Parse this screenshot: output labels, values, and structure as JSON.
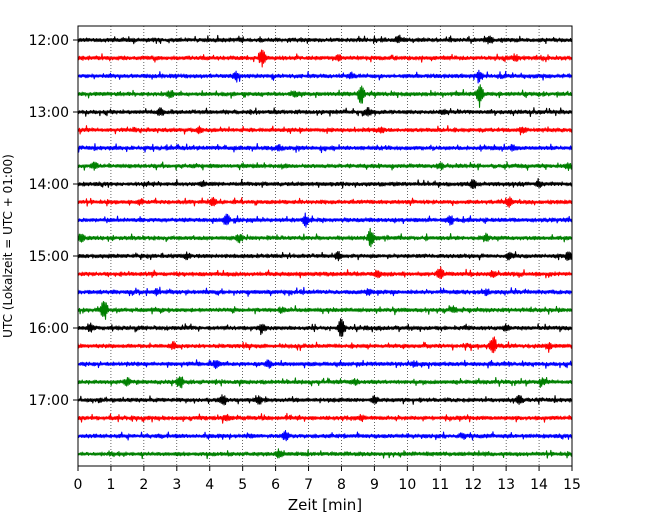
{
  "chart_data": {
    "type": "line",
    "title": "",
    "xlabel": "Zeit  [min]",
    "ylabel": "UTC (Lokalzeit = UTC + 01:00)",
    "xlim": [
      0,
      15
    ],
    "x_ticks": [
      "0",
      "1",
      "2",
      "3",
      "4",
      "5",
      "6",
      "7",
      "8",
      "9",
      "10",
      "11",
      "12",
      "13",
      "14",
      "15"
    ],
    "y_ticks": [
      "12:00",
      "13:00",
      "14:00",
      "15:00",
      "16:00",
      "17:00"
    ],
    "grid": "vertical dotted",
    "trace_colors": [
      "#000000",
      "#ff0000",
      "#0000ff",
      "#008000"
    ],
    "traces": [
      {
        "start": "12:00",
        "events": [
          [
            9.7,
            0.25
          ],
          [
            12.5,
            0.3
          ]
        ]
      },
      {
        "start": "12:15",
        "events": [
          [
            5.6,
            0.75
          ],
          [
            7.9,
            0.2
          ],
          [
            13.3,
            0.2
          ]
        ]
      },
      {
        "start": "12:30",
        "events": [
          [
            4.8,
            0.25
          ],
          [
            8.3,
            0.2
          ],
          [
            12.2,
            0.4
          ]
        ]
      },
      {
        "start": "12:45",
        "events": [
          [
            2.8,
            0.25
          ],
          [
            6.6,
            0.2
          ],
          [
            8.6,
            0.85
          ],
          [
            12.2,
            1.0
          ]
        ]
      },
      {
        "start": "13:00",
        "events": [
          [
            2.5,
            0.25
          ],
          [
            8.8,
            0.3
          ],
          [
            11.1,
            0.2
          ]
        ]
      },
      {
        "start": "13:15",
        "events": [
          [
            3.7,
            0.25
          ],
          [
            9.2,
            0.2
          ],
          [
            13.5,
            0.25
          ]
        ]
      },
      {
        "start": "13:30",
        "events": [
          [
            6.1,
            0.2
          ],
          [
            13.2,
            0.2
          ]
        ]
      },
      {
        "start": "13:45",
        "events": [
          [
            0.5,
            0.25
          ],
          [
            11.0,
            0.2
          ],
          [
            14.9,
            0.25
          ]
        ]
      },
      {
        "start": "14:00",
        "events": [
          [
            3.8,
            0.2
          ],
          [
            12.0,
            0.35
          ],
          [
            14.0,
            0.25
          ]
        ]
      },
      {
        "start": "14:15",
        "events": [
          [
            1.9,
            0.2
          ],
          [
            4.1,
            0.3
          ],
          [
            13.1,
            0.35
          ]
        ]
      },
      {
        "start": "14:30",
        "events": [
          [
            4.5,
            0.5
          ],
          [
            6.9,
            0.45
          ],
          [
            11.3,
            0.4
          ]
        ]
      },
      {
        "start": "14:45",
        "events": [
          [
            0.1,
            0.35
          ],
          [
            4.9,
            0.3
          ],
          [
            8.9,
            0.8
          ],
          [
            12.4,
            0.3
          ]
        ]
      },
      {
        "start": "15:00",
        "events": [
          [
            3.3,
            0.25
          ],
          [
            7.9,
            0.3
          ],
          [
            13.1,
            0.25
          ],
          [
            14.9,
            0.35
          ]
        ]
      },
      {
        "start": "15:15",
        "events": [
          [
            9.1,
            0.3
          ],
          [
            11.0,
            0.65
          ],
          [
            12.6,
            0.2
          ]
        ]
      },
      {
        "start": "15:30",
        "events": [
          [
            2.4,
            0.2
          ],
          [
            8.8,
            0.2
          ],
          [
            12.4,
            0.2
          ]
        ]
      },
      {
        "start": "15:45",
        "events": [
          [
            0.8,
            0.9
          ],
          [
            6.2,
            0.2
          ],
          [
            11.4,
            0.2
          ]
        ]
      },
      {
        "start": "16:00",
        "events": [
          [
            0.4,
            0.3
          ],
          [
            5.6,
            0.35
          ],
          [
            8.0,
            0.85
          ],
          [
            13.0,
            0.25
          ]
        ]
      },
      {
        "start": "16:15",
        "events": [
          [
            2.9,
            0.25
          ],
          [
            12.6,
            0.9
          ],
          [
            14.3,
            0.25
          ]
        ]
      },
      {
        "start": "16:30",
        "events": [
          [
            4.2,
            0.35
          ],
          [
            5.8,
            0.25
          ],
          [
            10.2,
            0.2
          ]
        ]
      },
      {
        "start": "16:45",
        "events": [
          [
            1.5,
            0.25
          ],
          [
            3.1,
            0.6
          ],
          [
            8.4,
            0.2
          ],
          [
            14.1,
            0.25
          ]
        ]
      },
      {
        "start": "17:00",
        "events": [
          [
            4.4,
            0.5
          ],
          [
            5.5,
            0.3
          ],
          [
            9.0,
            0.3
          ],
          [
            13.4,
            0.35
          ]
        ]
      },
      {
        "start": "17:15",
        "events": [
          [
            4.5,
            0.25
          ],
          [
            8.6,
            0.2
          ]
        ]
      },
      {
        "start": "17:30",
        "events": [
          [
            6.3,
            0.4
          ],
          [
            11.7,
            0.2
          ]
        ]
      },
      {
        "start": "17:45",
        "events": [
          [
            6.1,
            0.35
          ]
        ]
      }
    ]
  }
}
